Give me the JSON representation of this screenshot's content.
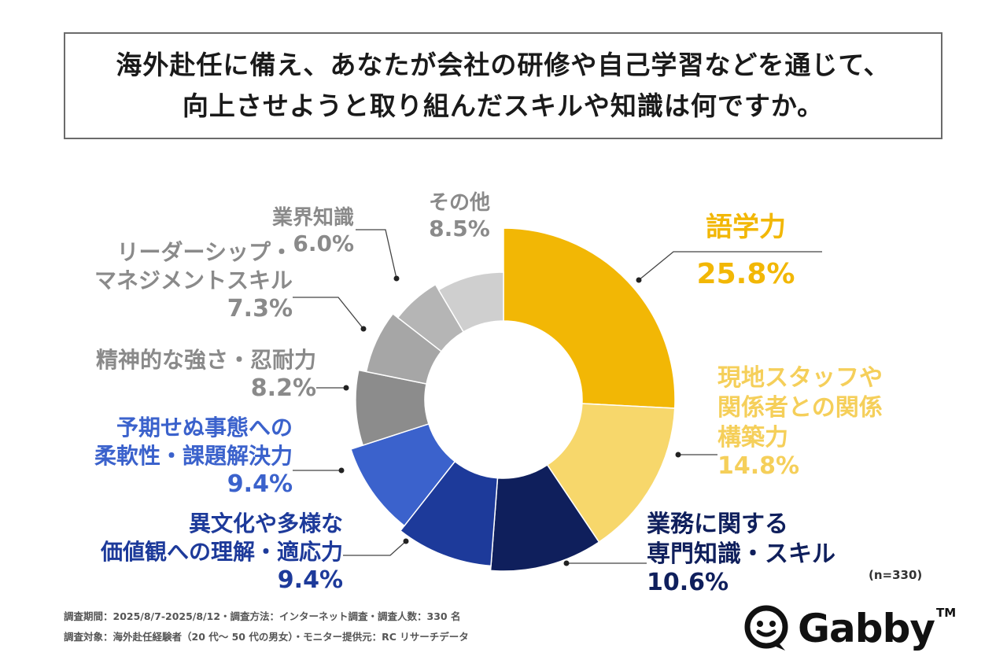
{
  "title": {
    "line1": "海外赴任に備え、あなたが会社の研修や自己学習などを通じて、",
    "line2": "向上させようと取り組んだスキルや知識は何ですか。"
  },
  "chart_data": {
    "type": "pie",
    "style": "donut",
    "start_angle_deg": 0,
    "direction": "clockwise",
    "slices": [
      {
        "label_lines": [
          "語学力"
        ],
        "value": 25.8,
        "value_text": "25.8%",
        "color": "#F2B705",
        "label_color": "#F2B705"
      },
      {
        "label_lines": [
          "現地スタッフや",
          "関係者との関係",
          "構築力"
        ],
        "value": 14.8,
        "value_text": "14.8%",
        "color": "#F7D76B",
        "label_color": "#F5CF5A"
      },
      {
        "label_lines": [
          "業務に関する",
          "専門知識・スキル"
        ],
        "value": 10.6,
        "value_text": "10.6%",
        "color": "#0F1F5C",
        "label_color": "#0F1F5C"
      },
      {
        "label_lines": [
          "異文化や多様な",
          "価値観への理解・適応力"
        ],
        "value": 9.4,
        "value_text": "9.4%",
        "color": "#1D3A9A",
        "label_color": "#1D3A9A"
      },
      {
        "label_lines": [
          "予期せぬ事態への",
          "柔軟性・課題解決力"
        ],
        "value": 9.4,
        "value_text": "9.4%",
        "color": "#3B62CC",
        "label_color": "#3B62CC"
      },
      {
        "label_lines": [
          "精神的な強さ・忍耐力"
        ],
        "value": 8.2,
        "value_text": "8.2%",
        "color": "#8C8C8C",
        "label_color": "#8A8A8A"
      },
      {
        "label_lines": [
          "リーダーシップ・",
          "マネジメントスキル"
        ],
        "value": 7.3,
        "value_text": "7.3%",
        "color": "#A6A6A6",
        "label_color": "#8A8A8A"
      },
      {
        "label_lines": [
          "業界知識"
        ],
        "value": 6.0,
        "value_text": "6.0%",
        "color": "#B5B5B5",
        "label_color": "#8A8A8A"
      },
      {
        "label_lines": [
          "その他"
        ],
        "value": 8.5,
        "value_text": "8.5%",
        "color": "#CFCFCF",
        "label_color": "#8A8A8A"
      }
    ],
    "sample_size": "(n=330)"
  },
  "notes": {
    "line1": "調査期間：2025/8/7-2025/8/12・調査方法：インターネット調査・調査人数：330 名",
    "line2": "調査対象：海外赴任経験者（20 代～ 50 代の男女）・モニター提供元：RC リサーチデータ"
  },
  "logo": {
    "text": "Gabby",
    "tm": "TM"
  }
}
